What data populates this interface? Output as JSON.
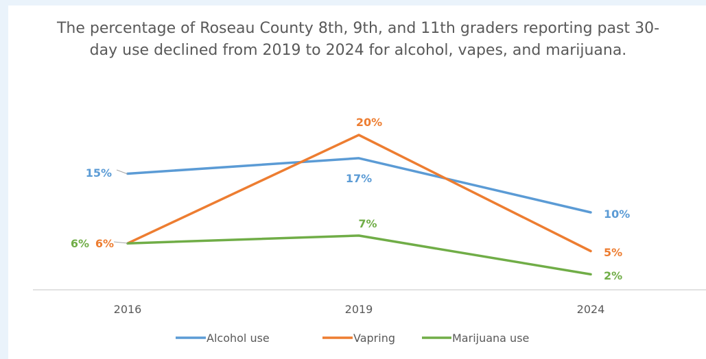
{
  "chart_data": {
    "type": "line",
    "title": "The percentage of Roseau County 8th, 9th, and 11th graders reporting past 30-day use declined from 2019 to 2024 for alcohol, vapes, and marijuana.",
    "categories": [
      "2016",
      "2019",
      "2024"
    ],
    "ylim": [
      0,
      25
    ],
    "grid": false,
    "legend_position": "bottom",
    "series": [
      {
        "name": "Alcohol use",
        "values": [
          15,
          17,
          10
        ],
        "labels": [
          "15%",
          "17%",
          "10%"
        ],
        "color": "#5b9bd5"
      },
      {
        "name": "Vapring",
        "values": [
          6,
          20,
          5
        ],
        "labels": [
          "6%",
          "20%",
          "5%"
        ],
        "color": "#ed7d31"
      },
      {
        "name": "Marijuana use",
        "values": [
          6,
          7,
          2
        ],
        "labels": [
          "6%",
          "7%",
          "2%"
        ],
        "color": "#70ad47"
      }
    ]
  }
}
